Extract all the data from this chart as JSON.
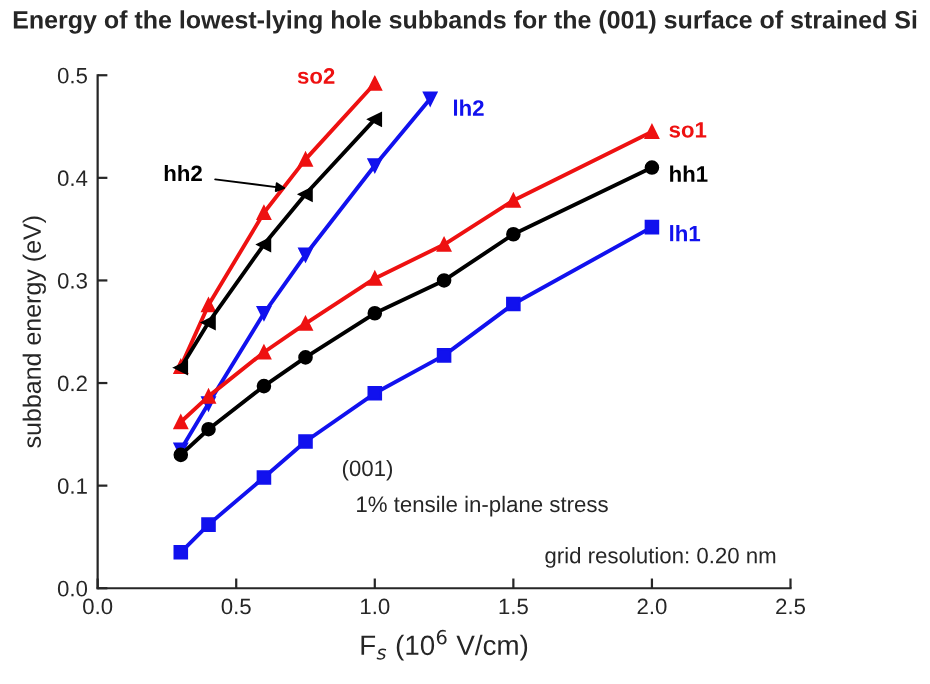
{
  "chart_data": {
    "type": "line",
    "title": "Energy of the lowest-lying hole subbands for the (001) surface of strained Si",
    "xlabel": "F$_{s}$ (10$^{6}$ V/cm)",
    "ylabel": "subband energy (eV)",
    "xlim": [
      0,
      2.5
    ],
    "ylim": [
      0,
      0.5
    ],
    "xticks": [
      {
        "value": 0,
        "label": "0.0"
      },
      {
        "value": 0.5,
        "label": "0.5"
      },
      {
        "value": 1.0,
        "label": "1.0"
      },
      {
        "value": 1.5,
        "label": "1.5"
      },
      {
        "value": 2.0,
        "label": "2.0"
      },
      {
        "value": 2.5,
        "label": "2.5"
      }
    ],
    "yticks": [
      {
        "value": 0,
        "label": "0.0"
      },
      0.1,
      0.2,
      0.3,
      0.4,
      0.5
    ],
    "grid": false,
    "line_style": "solid",
    "series": [
      {
        "name": "so2",
        "color": "#ee1111",
        "marker": "triangle",
        "x": [
          0.3,
          0.4,
          0.6,
          0.75,
          1.0
        ],
        "values": [
          0.216,
          0.276,
          0.366,
          0.418,
          0.492
        ]
      },
      {
        "name": "hh2",
        "color": "#000000",
        "marker": "triangle",
        "x": [
          0.3,
          0.4,
          0.6,
          0.75,
          1.0
        ],
        "values": [
          0.215,
          0.259,
          0.335,
          0.384,
          0.457
        ]
      },
      {
        "name": "lh2",
        "color": "#1111ee",
        "marker": "triangle",
        "x": [
          0.3,
          0.4,
          0.6,
          0.75,
          1.0,
          1.2
        ],
        "values": [
          0.135,
          0.18,
          0.268,
          0.325,
          0.412,
          0.477
        ]
      },
      {
        "name": "so1",
        "color": "#ee1111",
        "marker": "triangle",
        "x": [
          0.3,
          0.4,
          0.6,
          0.75,
          1.0,
          1.25,
          1.5,
          2.0
        ],
        "values": [
          0.162,
          0.187,
          0.23,
          0.258,
          0.302,
          0.335,
          0.378,
          0.445
        ]
      },
      {
        "name": "hh1",
        "color": "#000000",
        "marker": "circle",
        "x": [
          0.3,
          0.4,
          0.6,
          0.75,
          1.0,
          1.25,
          1.5,
          2.0
        ],
        "values": [
          0.13,
          0.155,
          0.197,
          0.225,
          0.268,
          0.3,
          0.345,
          0.41
        ]
      },
      {
        "name": "lh1",
        "color": "#1111ee",
        "marker": "square",
        "x": [
          0.3,
          0.4,
          0.6,
          0.75,
          1.0,
          1.25,
          1.5,
          2.0
        ],
        "values": [
          0.035,
          0.062,
          0.108,
          0.143,
          0.19,
          0.227,
          0.277,
          0.352
        ]
      }
    ],
    "annotations": [
      "(001)",
      "1% tensile in-plane stress",
      "grid resolution: 0.20 nm"
    ]
  }
}
